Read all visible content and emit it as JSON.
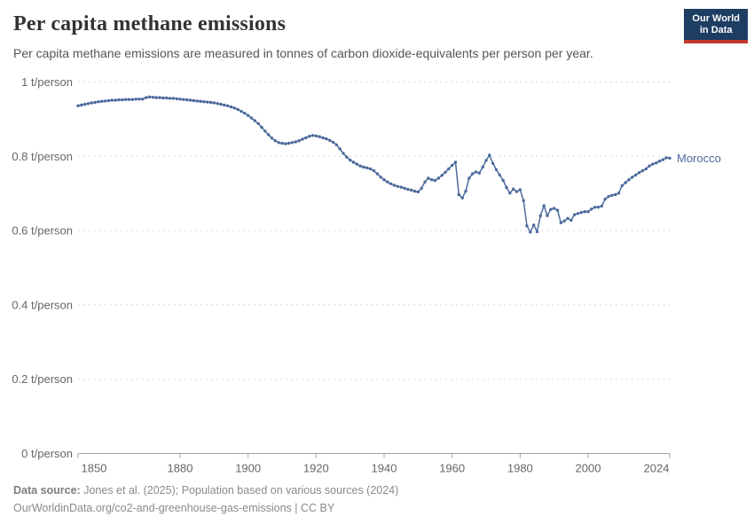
{
  "header": {
    "title": "Per capita methane emissions",
    "subtitle": "Per capita methane emissions are measured in tonnes of carbon dioxide-equivalents per person per year.",
    "logo": {
      "line1": "Our World",
      "line2": "in Data"
    }
  },
  "footer": {
    "source_label": "Data source:",
    "source_text": "Jones et al. (2025); Population based on various sources (2024)",
    "url": "OurWorldinData.org/co2-and-greenhouse-gas-emissions",
    "license": " | CC BY"
  },
  "colors": {
    "line": "#4c6a9c",
    "grid": "#d9d9d9",
    "axis": "#a1a1a1",
    "tick_text": "#666666",
    "entity_label": "#4c6a9c"
  },
  "chart_data": {
    "type": "line",
    "title": "Per capita methane emissions",
    "unit": "t/person",
    "xlim": [
      1850,
      2024
    ],
    "ylim": [
      0,
      1
    ],
    "grid": "horizontal-dashed",
    "legend_position": "end-of-line-label",
    "x_ticks": [
      "1850",
      "1880",
      "1900",
      "1920",
      "1940",
      "1960",
      "1980",
      "2000",
      "2024"
    ],
    "y_ticks": [
      {
        "value": 0,
        "label": "0 t/person"
      },
      {
        "value": 0.2,
        "label": "0.2 t/person"
      },
      {
        "value": 0.4,
        "label": "0.4 t/person"
      },
      {
        "value": 0.6,
        "label": "0.6 t/person"
      },
      {
        "value": 0.8,
        "label": "0.8 t/person"
      },
      {
        "value": 1,
        "label": "1 t/person"
      }
    ],
    "series": [
      {
        "name": "Morocco",
        "x_start": 1850,
        "x_step": 1,
        "values": [
          0.936,
          0.938,
          0.94,
          0.942,
          0.944,
          0.945,
          0.947,
          0.948,
          0.949,
          0.95,
          0.951,
          0.951,
          0.952,
          0.952,
          0.953,
          0.953,
          0.953,
          0.954,
          0.954,
          0.954,
          0.958,
          0.96,
          0.959,
          0.958,
          0.958,
          0.957,
          0.957,
          0.956,
          0.956,
          0.955,
          0.954,
          0.953,
          0.952,
          0.951,
          0.95,
          0.949,
          0.948,
          0.947,
          0.946,
          0.945,
          0.944,
          0.942,
          0.94,
          0.938,
          0.936,
          0.933,
          0.93,
          0.926,
          0.921,
          0.916,
          0.91,
          0.903,
          0.896,
          0.888,
          0.878,
          0.868,
          0.858,
          0.849,
          0.842,
          0.837,
          0.835,
          0.834,
          0.835,
          0.837,
          0.839,
          0.842,
          0.846,
          0.85,
          0.854,
          0.856,
          0.855,
          0.853,
          0.85,
          0.847,
          0.843,
          0.838,
          0.831,
          0.82,
          0.808,
          0.798,
          0.79,
          0.784,
          0.779,
          0.774,
          0.771,
          0.769,
          0.766,
          0.761,
          0.753,
          0.744,
          0.737,
          0.731,
          0.726,
          0.722,
          0.719,
          0.717,
          0.714,
          0.711,
          0.709,
          0.706,
          0.704,
          0.714,
          0.731,
          0.741,
          0.737,
          0.735,
          0.741,
          0.749,
          0.757,
          0.766,
          0.776,
          0.784,
          0.697,
          0.688,
          0.706,
          0.741,
          0.753,
          0.758,
          0.755,
          0.771,
          0.789,
          0.803,
          0.781,
          0.764,
          0.75,
          0.735,
          0.716,
          0.701,
          0.712,
          0.705,
          0.71,
          0.681,
          0.613,
          0.596,
          0.615,
          0.597,
          0.64,
          0.667,
          0.64,
          0.657,
          0.66,
          0.655,
          0.621,
          0.626,
          0.633,
          0.628,
          0.643,
          0.646,
          0.649,
          0.651,
          0.651,
          0.658,
          0.663,
          0.663,
          0.666,
          0.685,
          0.692,
          0.695,
          0.697,
          0.701,
          0.721,
          0.729,
          0.737,
          0.744,
          0.75,
          0.756,
          0.761,
          0.766,
          0.774,
          0.779,
          0.782,
          0.787,
          0.791,
          0.796,
          0.795
        ]
      }
    ]
  }
}
